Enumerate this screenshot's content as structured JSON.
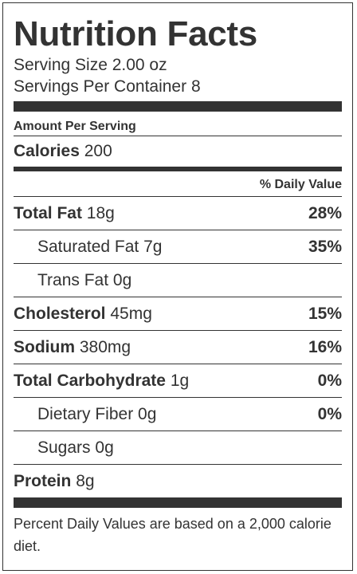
{
  "label": {
    "title": "Nutrition Facts",
    "serving_size": "Serving Size 2.00 oz",
    "servings_per_container": "Servings Per Container 8",
    "amount_per_serving": "Amount Per Serving",
    "calories": {
      "label": "Calories",
      "value": "200"
    },
    "daily_value_header": "% Daily Value",
    "nutrients": [
      {
        "name": "Total Fat",
        "amount": "18g",
        "dv": "28%"
      },
      {
        "name": "Saturated Fat",
        "amount": "7g",
        "dv": "35%"
      },
      {
        "name": "Trans Fat",
        "amount": "0g",
        "dv": ""
      },
      {
        "name": "Cholesterol",
        "amount": "45mg",
        "dv": "15%"
      },
      {
        "name": "Sodium",
        "amount": "380mg",
        "dv": "16%"
      },
      {
        "name": "Total Carbohydrate",
        "amount": "1g",
        "dv": "0%"
      },
      {
        "name": "Dietary Fiber",
        "amount": "0g",
        "dv": "0%"
      },
      {
        "name": "Sugars",
        "amount": "0g",
        "dv": ""
      },
      {
        "name": "Protein",
        "amount": "8g",
        "dv": ""
      }
    ],
    "footnote": "Percent Daily Values are based on a 2,000 calorie diet."
  },
  "colors": {
    "text": "#333333",
    "rule": "#333333",
    "background": "#ffffff"
  }
}
